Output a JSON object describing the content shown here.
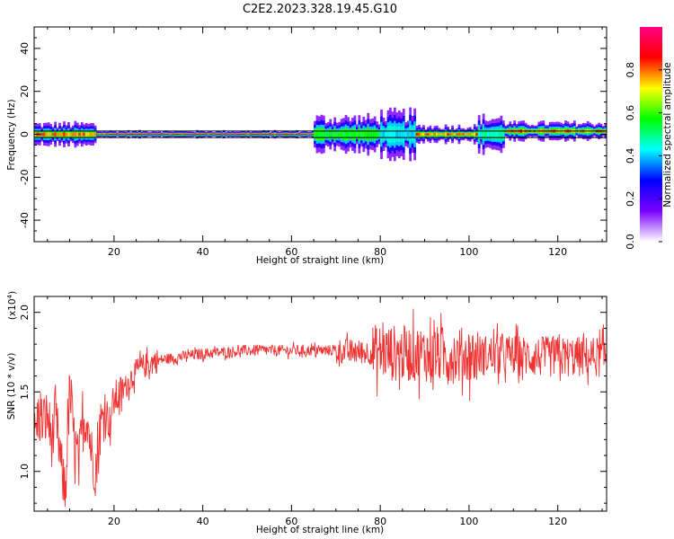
{
  "title": "C2E2.2023.328.19.45.G10",
  "chart_data": [
    {
      "type": "heatmap",
      "xlabel": "Height of straight line (km)",
      "ylabel": "Frequency (Hz)",
      "xlim": [
        2,
        131
      ],
      "ylim": [
        -50,
        50
      ],
      "xticks": [
        20,
        40,
        60,
        80,
        100,
        120
      ],
      "yticks": [
        -40,
        -20,
        0,
        20,
        40
      ],
      "reference_lines_hz": [
        -1.5,
        1.5
      ],
      "colorbar": {
        "label": "Normalized spectral amplitude",
        "range": [
          0,
          1
        ],
        "ticks": [
          "0.0",
          "0.2",
          "0.4",
          "0.6",
          "0.8"
        ],
        "colors": [
          "#ffffff",
          "#7a00ff",
          "#0000ff",
          "#00ffff",
          "#00ff00",
          "#ffff00",
          "#ff0000",
          "#ff0080"
        ]
      },
      "signal_segments": [
        {
          "x": [
            2,
            16
          ],
          "center_hz": 0,
          "spread_hz": 2.5,
          "peak": 0.85
        },
        {
          "x": [
            16,
            65
          ],
          "center_hz": 0,
          "spread_hz": 0.8,
          "peak": 0.95
        },
        {
          "x": [
            65,
            80
          ],
          "center_hz": 0,
          "spread_hz": 4,
          "peak": 0.6
        },
        {
          "x": [
            80,
            88
          ],
          "center_hz": 0,
          "spread_hz": 5,
          "peak": 0.45
        },
        {
          "x": [
            88,
            102
          ],
          "center_hz": 0,
          "spread_hz": 2,
          "peak": 0.85
        },
        {
          "x": [
            102,
            108
          ],
          "center_hz": 0,
          "spread_hz": 4,
          "peak": 0.5
        },
        {
          "x": [
            108,
            131
          ],
          "center_hz": 1.5,
          "spread_hz": 2,
          "peak": 0.85
        }
      ]
    },
    {
      "type": "line",
      "xlabel": "Height of straight line (km)",
      "ylabel": "SNR (10 * v/v)",
      "y_multiplier": "(x10",
      "y_multiplier_exp": "4",
      "xlim": [
        2,
        131
      ],
      "ylim": [
        0.75,
        2.1
      ],
      "xticks": [
        20,
        40,
        60,
        80,
        100,
        120
      ],
      "yticks": [
        1.0,
        1.5,
        2.0
      ],
      "color": "#ee3333",
      "series": [
        {
          "x": [
            2,
            3,
            4,
            5,
            6,
            7,
            8,
            9,
            10,
            11,
            12,
            13,
            14,
            15,
            16,
            17,
            18,
            19,
            20,
            22,
            24,
            26,
            28,
            30,
            35,
            40,
            45,
            50,
            55,
            60,
            65,
            70,
            75,
            80,
            85,
            90,
            95,
            100,
            105,
            110,
            115,
            120,
            125,
            131
          ],
          "y": [
            1.2,
            1.35,
            1.3,
            1.35,
            1.2,
            1.3,
            1.05,
            0.85,
            1.5,
            1.2,
            1.05,
            1.3,
            1.35,
            1.1,
            1.0,
            1.3,
            1.4,
            1.3,
            1.45,
            1.5,
            1.6,
            1.65,
            1.68,
            1.7,
            1.72,
            1.74,
            1.75,
            1.76,
            1.76,
            1.76,
            1.76,
            1.76,
            1.75,
            1.75,
            1.74,
            1.74,
            1.73,
            1.73,
            1.73,
            1.73,
            1.72,
            1.72,
            1.72,
            1.72
          ]
        }
      ]
    }
  ]
}
